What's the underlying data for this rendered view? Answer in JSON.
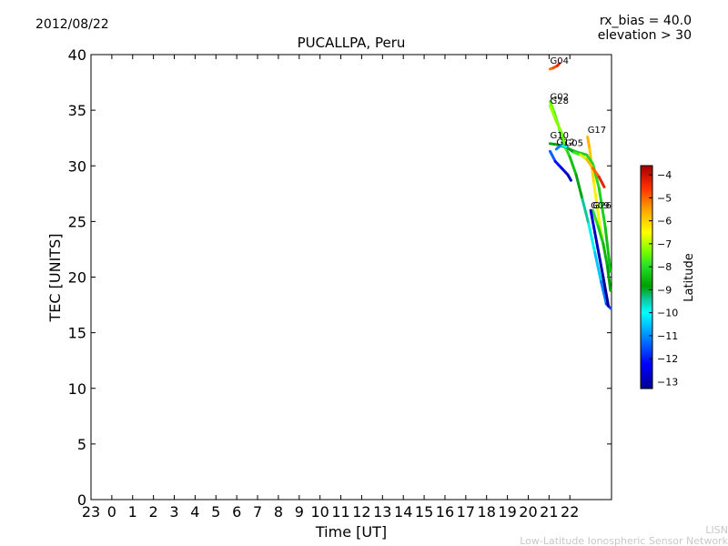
{
  "chart_data": {
    "type": "scatter",
    "date": "2012/08/22",
    "title": "PUCALLPA, Peru",
    "info_line1": "rx_bias = 40.0",
    "info_line2": "elevation > 30",
    "xlabel": "Time [UT]",
    "ylabel": "TEC [UNITS]",
    "xlim": [
      -1,
      24
    ],
    "ylim": [
      0,
      40
    ],
    "x_ticks": [
      {
        "v": -1,
        "label": "23"
      },
      {
        "v": 0,
        "label": "0"
      },
      {
        "v": 1,
        "label": "1"
      },
      {
        "v": 2,
        "label": "2"
      },
      {
        "v": 3,
        "label": "3"
      },
      {
        "v": 4,
        "label": "4"
      },
      {
        "v": 5,
        "label": "5"
      },
      {
        "v": 6,
        "label": "6"
      },
      {
        "v": 7,
        "label": "7"
      },
      {
        "v": 8,
        "label": "8"
      },
      {
        "v": 9,
        "label": "9"
      },
      {
        "v": 10,
        "label": "10"
      },
      {
        "v": 11,
        "label": "11"
      },
      {
        "v": 12,
        "label": "12"
      },
      {
        "v": 13,
        "label": "13"
      },
      {
        "v": 14,
        "label": "14"
      },
      {
        "v": 15,
        "label": "15"
      },
      {
        "v": 16,
        "label": "16"
      },
      {
        "v": 17,
        "label": "17"
      },
      {
        "v": 18,
        "label": "18"
      },
      {
        "v": 19,
        "label": "19"
      },
      {
        "v": 20,
        "label": "20"
      },
      {
        "v": 21,
        "label": "21"
      },
      {
        "v": 22,
        "label": "22"
      }
    ],
    "y_ticks": [
      0,
      5,
      10,
      15,
      20,
      25,
      30,
      35,
      40
    ],
    "colorbar": {
      "label": "Latitude",
      "min": -13.3,
      "max": -3.6,
      "ticks": [
        -4,
        -5,
        -6,
        -7,
        -8,
        -9,
        -10,
        -11,
        -12,
        -13
      ]
    },
    "series": [
      {
        "name": "G04",
        "label_at": [
          21.05,
          39.0
        ],
        "points": [
          [
            21.05,
            38.7,
            -5.2
          ],
          [
            21.2,
            38.8,
            -5.0
          ],
          [
            21.4,
            39.0,
            -4.6
          ],
          [
            21.5,
            39.2,
            -4.2
          ]
        ]
      },
      {
        "name": "G02",
        "label_at": [
          21.05,
          35.8
        ],
        "points": [
          [
            21.05,
            35.8,
            -7.4
          ],
          [
            21.25,
            34.8,
            -7.6
          ],
          [
            21.5,
            33.3,
            -7.8
          ],
          [
            21.7,
            32.0,
            -8.0
          ],
          [
            22.0,
            30.8,
            -8.2
          ],
          [
            22.3,
            29.2,
            -8.6
          ],
          [
            22.6,
            27.0,
            -9.2
          ],
          [
            22.9,
            24.8,
            -9.6
          ],
          [
            23.2,
            22.2,
            -10.2
          ],
          [
            23.5,
            19.6,
            -10.8
          ],
          [
            23.75,
            17.6,
            -11.4
          ],
          [
            23.95,
            17.2,
            -11.8
          ]
        ]
      },
      {
        "name": "G28",
        "label_at": [
          21.05,
          35.4
        ],
        "points": [
          [
            21.05,
            35.4,
            -7.0
          ],
          [
            21.3,
            34.2,
            -7.2
          ],
          [
            21.6,
            33.0,
            -7.3
          ],
          [
            21.8,
            31.5,
            -7.5
          ]
        ]
      },
      {
        "name": "G17",
        "label_at": [
          22.85,
          32.8
        ],
        "points": [
          [
            22.85,
            32.6,
            -5.6
          ],
          [
            22.95,
            31.5,
            -5.8
          ],
          [
            23.05,
            30.0,
            -6.0
          ],
          [
            23.15,
            28.5,
            -6.2
          ],
          [
            23.3,
            26.5,
            -6.5
          ],
          [
            23.45,
            24.5,
            -6.8
          ],
          [
            23.6,
            23.0,
            -7.0
          ]
        ]
      },
      {
        "name": "G26",
        "label_at": [
          23.1,
          26.0
        ],
        "points": [
          [
            23.1,
            26.0,
            -7.8
          ],
          [
            23.35,
            24.6,
            -8.1
          ],
          [
            23.6,
            23.0,
            -8.4
          ],
          [
            23.8,
            21.0,
            -8.7
          ],
          [
            23.95,
            18.8,
            -9.0
          ]
        ]
      },
      {
        "name": "G10",
        "label_at": [
          21.05,
          32.3
        ],
        "points": [
          [
            21.05,
            31.3,
            -11.0
          ],
          [
            21.3,
            30.4,
            -11.8
          ],
          [
            21.6,
            29.8,
            -12.4
          ],
          [
            21.9,
            29.2,
            -12.8
          ],
          [
            22.05,
            28.7,
            -13.1
          ]
        ]
      },
      {
        "name": "G05",
        "label_at": [
          21.75,
          31.6
        ],
        "points": [
          [
            21.05,
            32.0,
            -9.0
          ],
          [
            21.4,
            31.9,
            -8.8
          ],
          [
            21.75,
            31.7,
            -8.6
          ],
          [
            22.1,
            31.4,
            -8.4
          ],
          [
            22.4,
            31.2,
            -8.3
          ],
          [
            22.8,
            31.0,
            -8.2
          ],
          [
            23.1,
            30.2,
            -8.0
          ],
          [
            23.4,
            28.0,
            -8.1
          ],
          [
            23.7,
            24.5,
            -8.3
          ],
          [
            23.95,
            20.5,
            -8.5
          ]
        ]
      },
      {
        "name": "G12",
        "label_at": [
          21.35,
          31.7
        ],
        "points": [
          [
            21.35,
            31.5,
            -11.6
          ],
          [
            21.6,
            31.9,
            -10.6
          ],
          [
            21.9,
            31.6,
            -9.6
          ],
          [
            22.2,
            31.2,
            -8.3
          ],
          [
            22.5,
            31.0,
            -7.4
          ],
          [
            22.8,
            30.6,
            -6.3
          ],
          [
            23.1,
            29.8,
            -5.3
          ],
          [
            23.4,
            29.0,
            -4.6
          ],
          [
            23.65,
            28.1,
            -4.0
          ]
        ]
      },
      {
        "name": "G09",
        "label_at": [
          23.0,
          26.0
        ],
        "points": [
          [
            23.0,
            26.0,
            -12.4
          ],
          [
            23.2,
            24.0,
            -12.7
          ],
          [
            23.4,
            22.0,
            -12.9
          ],
          [
            23.6,
            20.0,
            -13.1
          ],
          [
            23.85,
            17.4,
            -13.3
          ]
        ]
      }
    ],
    "footer_line1": "LISN",
    "footer_line2": "Low-Latitude Ionospheric Sensor Network"
  }
}
